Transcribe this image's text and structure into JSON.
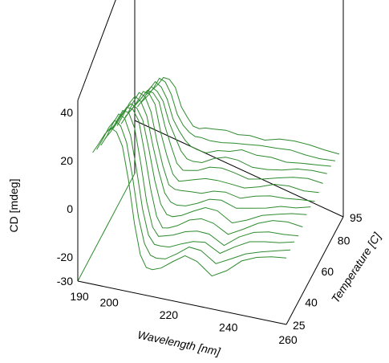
{
  "chart_data": {
    "type": "line",
    "projection": "3d-waterfall",
    "title": "",
    "ylabel": "CD [mdeg]",
    "xlabel": "Wavelength [nm]",
    "zlabel": "Temperature [C]",
    "x_range": [
      190,
      260
    ],
    "y_range": [
      -30,
      45
    ],
    "z_range": [
      25,
      95
    ],
    "x_ticks": [
      "190",
      "200",
      "220",
      "240",
      "260"
    ],
    "y_ticks": [
      "40",
      "20",
      "0",
      "-20",
      "-30"
    ],
    "z_ticks": [
      "25",
      "40",
      "60",
      "80",
      "95"
    ],
    "line_color": "#2e8b2e",
    "axis_line_color": "#000000",
    "wavelengths": [
      195,
      197,
      199,
      201,
      203,
      205,
      207,
      209,
      211,
      213,
      215,
      218,
      222,
      226,
      230,
      235,
      240,
      245,
      250,
      255,
      260
    ],
    "series": [
      {
        "temperature": 25,
        "values": [
          24,
          28,
          33,
          37,
          36,
          30,
          16,
          -2,
          -14,
          -18,
          -18,
          -17,
          -14,
          -11,
          -12,
          -16,
          -12,
          -7,
          -5,
          -4,
          -3
        ]
      },
      {
        "temperature": 30,
        "values": [
          23,
          27,
          32,
          36,
          35,
          29,
          15,
          -2,
          -13,
          -17,
          -17,
          -16,
          -13,
          -10,
          -11,
          -15,
          -11,
          -7,
          -5,
          -4,
          -3
        ]
      },
      {
        "temperature": 35,
        "values": [
          22,
          26,
          31,
          35,
          34,
          28,
          15,
          -1,
          -12,
          -16,
          -16,
          -15,
          -12,
          -10,
          -10,
          -14,
          -10,
          -6,
          -4,
          -3,
          -2
        ]
      },
      {
        "temperature": 40,
        "values": [
          21,
          25,
          30,
          34,
          33,
          27,
          14,
          -1,
          -11,
          -15,
          -15,
          -14,
          -11,
          -9,
          -9,
          -13,
          -9,
          -6,
          -4,
          -3,
          -2
        ]
      },
      {
        "temperature": 45,
        "values": [
          20,
          24,
          29,
          33,
          32,
          27,
          14,
          0,
          -10,
          -14,
          -14,
          -13,
          -10,
          -8,
          -8,
          -11,
          -8,
          -5,
          -3,
          -2,
          -2
        ]
      },
      {
        "temperature": 50,
        "values": [
          18,
          22,
          27,
          31,
          30,
          25,
          13,
          0,
          -9,
          -12,
          -12,
          -11,
          -9,
          -7,
          -7,
          -10,
          -7,
          -4,
          -3,
          -2,
          -1
        ]
      },
      {
        "temperature": 55,
        "values": [
          17,
          21,
          26,
          30,
          29,
          24,
          12,
          1,
          -8,
          -11,
          -11,
          -10,
          -8,
          -6,
          -6,
          -8,
          -6,
          -4,
          -2,
          -2,
          -1
        ]
      },
      {
        "temperature": 60,
        "values": [
          15,
          19,
          24,
          28,
          27,
          22,
          11,
          1,
          -7,
          -9,
          -9,
          -8,
          -7,
          -5,
          -5,
          -7,
          -5,
          -3,
          -2,
          -1,
          -1
        ]
      },
      {
        "temperature": 65,
        "values": [
          14,
          18,
          22,
          26,
          25,
          21,
          10,
          2,
          -5,
          -8,
          -8,
          -7,
          -5,
          -4,
          -4,
          -5,
          -4,
          -2,
          -1,
          -1,
          0
        ]
      },
      {
        "temperature": 70,
        "values": [
          12,
          16,
          20,
          24,
          23,
          19,
          9,
          2,
          -4,
          -6,
          -6,
          -6,
          -4,
          -3,
          -3,
          -4,
          -3,
          -2,
          -1,
          0,
          0
        ]
      },
      {
        "temperature": 75,
        "values": [
          11,
          14,
          18,
          22,
          21,
          17,
          8,
          2,
          -3,
          -5,
          -5,
          -5,
          -3,
          -2,
          -2,
          -3,
          -2,
          -1,
          0,
          0,
          0
        ]
      },
      {
        "temperature": 80,
        "values": [
          9,
          12,
          16,
          20,
          19,
          15,
          7,
          2,
          -2,
          -4,
          -4,
          -4,
          -2,
          -2,
          -1,
          -2,
          -1,
          -1,
          0,
          0,
          0
        ]
      },
      {
        "temperature": 85,
        "values": [
          8,
          11,
          14,
          18,
          17,
          13,
          6,
          2,
          -1,
          -3,
          -3,
          -3,
          -2,
          -1,
          -1,
          -1,
          -1,
          0,
          0,
          0,
          0
        ]
      },
      {
        "temperature": 90,
        "values": [
          7,
          10,
          13,
          16,
          15,
          12,
          5,
          2,
          -1,
          -2,
          -2,
          -2,
          -1,
          -1,
          0,
          -1,
          0,
          0,
          0,
          0,
          0
        ]
      }
    ]
  }
}
